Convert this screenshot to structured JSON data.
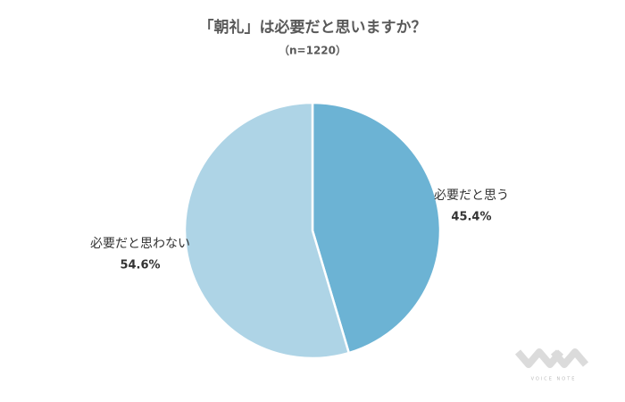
{
  "chart_data": {
    "type": "pie",
    "title": "「朝礼」は必要だと思いますか？",
    "subtitle": "（n=1220）",
    "categories": [
      "必要だと思う",
      "必要だと思わない"
    ],
    "values": [
      45.4,
      54.6
    ],
    "value_labels": [
      "45.4%",
      "54.6%"
    ],
    "colors": [
      "#6cb3d4",
      "#aed4e6"
    ],
    "watermark": "VOICE NOTE"
  }
}
